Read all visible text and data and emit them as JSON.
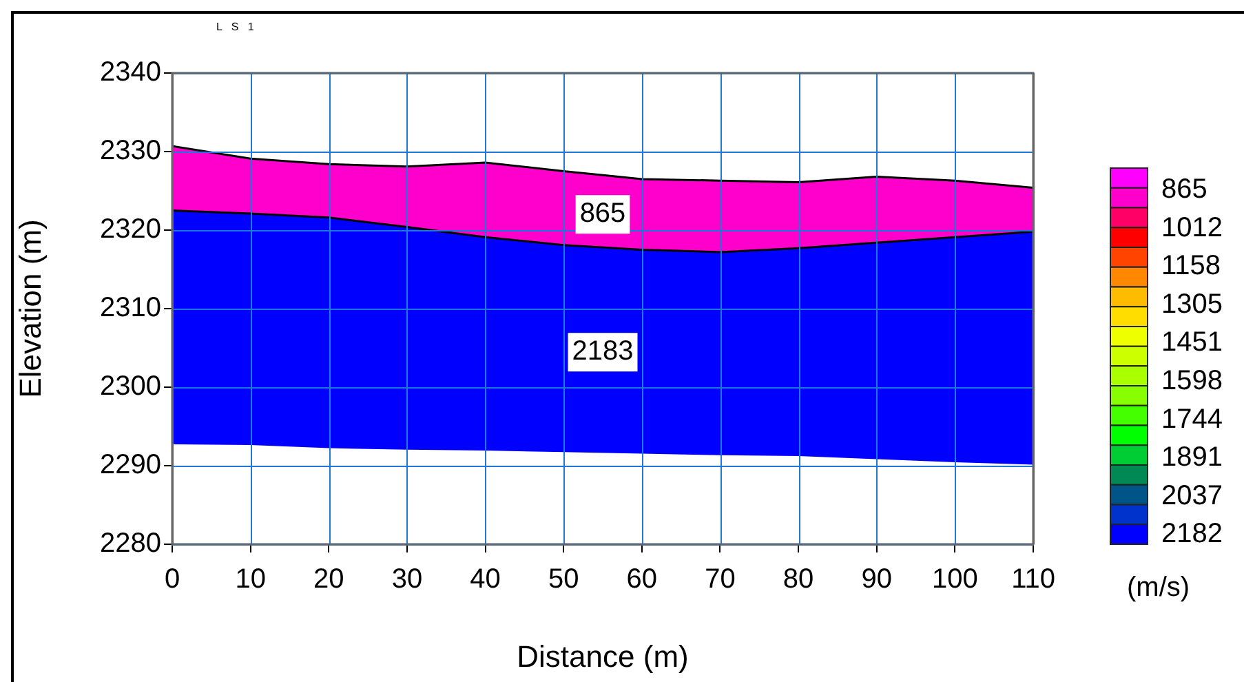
{
  "chart_data": {
    "type": "area",
    "title": "L S 1",
    "xlabel": "Distance (m)",
    "ylabel": "Elevation (m)",
    "x": [
      0,
      10,
      20,
      30,
      40,
      50,
      60,
      70,
      80,
      90,
      100,
      110
    ],
    "series": [
      {
        "color": "#ff00cc",
        "values": [
          2330.7,
          2329.1,
          2328.4,
          2328.1,
          2328.6,
          2327.5,
          2326.5,
          2326.3,
          2326.1,
          2326.8,
          2326.3,
          2325.4
        ]
      },
      {
        "color": "#0000ff",
        "values": [
          2322.5,
          2322.1,
          2321.6,
          2320.4,
          2319.1,
          2318.1,
          2317.5,
          2317.2,
          2317.7,
          2318.4,
          2319.1,
          2319.8
        ]
      },
      {
        "color": "#ffffff",
        "values": [
          2292.6,
          2292.5,
          2292.1,
          2291.9,
          2291.8,
          2291.6,
          2291.4,
          2291.2,
          2291.1,
          2290.7,
          2290.3,
          2290.0
        ]
      }
    ],
    "xlim": [
      0,
      110
    ],
    "xticks": [
      0,
      10,
      20,
      30,
      40,
      50,
      60,
      70,
      80,
      90,
      100,
      110
    ],
    "ylim": [
      2280,
      2340
    ],
    "yticks": [
      2280,
      2290,
      2300,
      2310,
      2320,
      2330,
      2340
    ],
    "grid": true,
    "annotations": [
      "865",
      "2183"
    ],
    "clabel": "(m/s)",
    "clim": [
      781,
      2219
    ],
    "cticks": [
      865,
      1012,
      1158,
      1305,
      1451,
      1598,
      1744,
      1891,
      2037,
      2182
    ],
    "colors": [
      "#ff00ff",
      "#ff00cc",
      "#ff0066",
      "#ff0000",
      "#ff4400",
      "#ff8800",
      "#ffbb00",
      "#ffdd00",
      "#eeff00",
      "#ccff00",
      "#aaff00",
      "#88ff00",
      "#44ff00",
      "#00ff00",
      "#00cc33",
      "#008855",
      "#005588",
      "#0033cc",
      "#0000ff"
    ]
  }
}
